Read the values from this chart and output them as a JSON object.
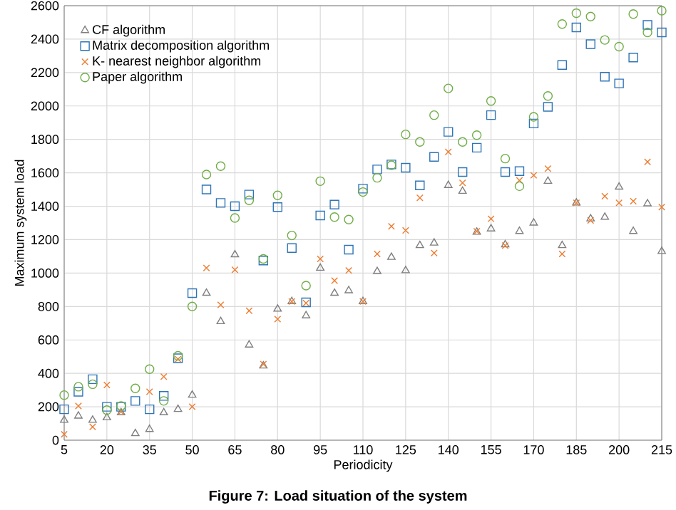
{
  "chart_data": {
    "type": "scatter",
    "xlabel": "Periodicity",
    "ylabel": "Maximum system load",
    "annotations": [
      "Figure 7: Load situation of the system"
    ],
    "x": [
      5,
      10,
      15,
      20,
      25,
      30,
      35,
      40,
      45,
      50,
      55,
      60,
      65,
      70,
      75,
      80,
      85,
      90,
      95,
      100,
      105,
      110,
      115,
      120,
      125,
      130,
      135,
      140,
      145,
      150,
      155,
      160,
      165,
      170,
      175,
      180,
      185,
      190,
      195,
      200,
      205,
      210,
      215
    ],
    "xlim": [
      5,
      215
    ],
    "xticks": [
      5,
      20,
      35,
      50,
      65,
      80,
      95,
      110,
      125,
      140,
      155,
      170,
      185,
      200,
      215
    ],
    "ylim": [
      0,
      2600
    ],
    "yticks": [
      0,
      200,
      400,
      600,
      800,
      1000,
      1200,
      1400,
      1600,
      1800,
      2000,
      2200,
      2400,
      2600
    ],
    "grid": true,
    "legend": "top left",
    "series": [
      {
        "name": "CF algorithm",
        "color": "#7f7f7f",
        "marker": "triangle",
        "values": [
          120,
          145,
          120,
          135,
          165,
          40,
          65,
          165,
          185,
          270,
          880,
          710,
          1110,
          570,
          445,
          785,
          830,
          745,
          1030,
          880,
          895,
          830,
          1010,
          1095,
          1015,
          1165,
          1180,
          1525,
          1490,
          1245,
          1265,
          1170,
          1250,
          1300,
          1550,
          1165,
          1420,
          1325,
          1335,
          1515,
          1250,
          1415,
          1130
        ]
      },
      {
        "name": "Matrix decomposition algorithm",
        "color": "#2e75b6",
        "marker": "square",
        "values": [
          185,
          290,
          365,
          200,
          200,
          235,
          185,
          265,
          490,
          880,
          1500,
          1420,
          1400,
          1470,
          1075,
          1395,
          1150,
          825,
          1345,
          1410,
          1140,
          1505,
          1620,
          1650,
          1630,
          1525,
          1695,
          1845,
          1605,
          1750,
          1945,
          1605,
          1610,
          1895,
          1995,
          2245,
          2470,
          2370,
          2175,
          2135,
          2290,
          2485,
          2440
        ]
      },
      {
        "name": "K- nearest neighbor algorithm",
        "color": "#ed7d31",
        "marker": "cross",
        "values": [
          35,
          205,
          80,
          330,
          170,
          null,
          290,
          380,
          485,
          200,
          1030,
          810,
          1020,
          775,
          455,
          725,
          830,
          820,
          1085,
          955,
          1015,
          830,
          1115,
          1280,
          1255,
          1450,
          1120,
          1725,
          1540,
          1250,
          1325,
          1165,
          1555,
          1585,
          1625,
          1115,
          1420,
          1315,
          1460,
          1420,
          1430,
          1665,
          1395
        ]
      },
      {
        "name": "Paper algorithm",
        "color": "#70ad47",
        "marker": "circle",
        "values": [
          270,
          320,
          335,
          180,
          205,
          310,
          425,
          235,
          505,
          800,
          1590,
          1640,
          1330,
          1435,
          1085,
          1465,
          1225,
          925,
          1550,
          1335,
          1320,
          1485,
          1570,
          1645,
          1830,
          1785,
          1945,
          2105,
          1785,
          1825,
          2030,
          1685,
          1520,
          1935,
          2060,
          2490,
          2555,
          2535,
          2395,
          2355,
          2550,
          2440,
          2570
        ]
      }
    ]
  }
}
